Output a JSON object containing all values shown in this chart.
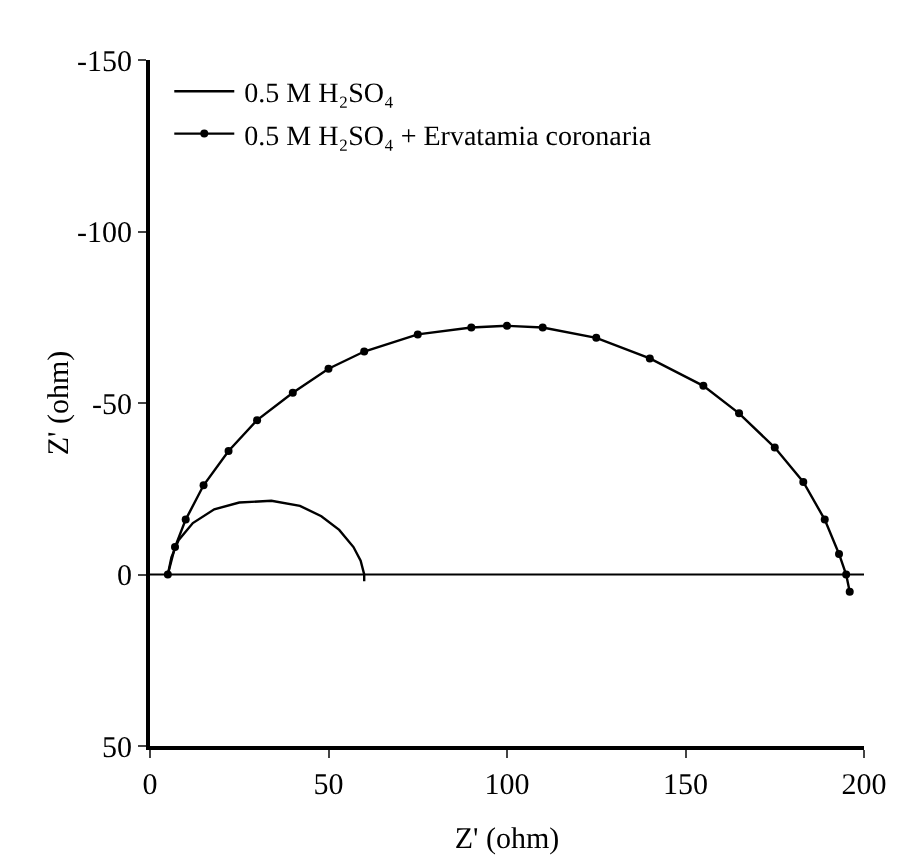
{
  "chart_data": {
    "type": "line",
    "xlabel": "Z' (ohm)",
    "ylabel": "Z' (ohm)",
    "xlim": [
      0,
      200
    ],
    "xticks": [
      0,
      50,
      100,
      150,
      200
    ],
    "ylim": [
      50,
      -150
    ],
    "yticks": [
      -150,
      -100,
      -50,
      0,
      50
    ],
    "grid": false,
    "legend": "top left",
    "ref_lines": [
      {
        "axis": "y",
        "value": 0,
        "color": "#000000"
      }
    ],
    "series": [
      {
        "name": "0.5 M H₂SO₄",
        "color": "#000000",
        "marker": "none",
        "x": [
          5,
          6,
          8,
          12,
          18,
          25,
          34,
          42,
          48,
          53,
          57,
          59,
          60,
          60
        ],
        "values": [
          0,
          -5,
          -10,
          -15,
          -19,
          -21,
          -21.5,
          -20,
          -17,
          -13,
          -8,
          -4,
          0,
          2
        ]
      },
      {
        "name": "0.5 M H₂SO₄ + Ervatamia coronaria",
        "color": "#000000",
        "marker": "circle",
        "x": [
          5,
          7,
          10,
          15,
          22,
          30,
          40,
          50,
          60,
          75,
          90,
          100,
          110,
          125,
          140,
          155,
          165,
          175,
          183,
          189,
          193,
          195,
          196
        ],
        "values": [
          0,
          -8,
          -16,
          -26,
          -36,
          -45,
          -53,
          -60,
          -65,
          -70,
          -72,
          -72.5,
          -72,
          -69,
          -63,
          -55,
          -47,
          -37,
          -27,
          -16,
          -6,
          0,
          5
        ]
      }
    ]
  }
}
